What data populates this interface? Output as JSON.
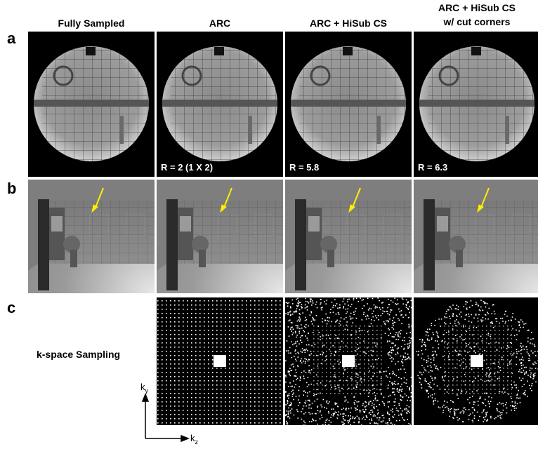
{
  "headers": [
    [
      "Fully Sampled"
    ],
    [
      "ARC"
    ],
    [
      "ARC + HiSub CS"
    ],
    [
      "ARC + HiSub CS",
      "w/ cut corners"
    ]
  ],
  "row_labels": [
    "a",
    "b",
    "c"
  ],
  "acceleration_labels": [
    "R = 2 (1 X 2)",
    "R = 5.8",
    "R = 6.3"
  ],
  "sampling_label": "k-space Sampling",
  "axes": {
    "vertical": {
      "symbol": "k",
      "subscript": "y"
    },
    "horizontal": {
      "symbol": "k",
      "subscript": "z"
    }
  }
}
